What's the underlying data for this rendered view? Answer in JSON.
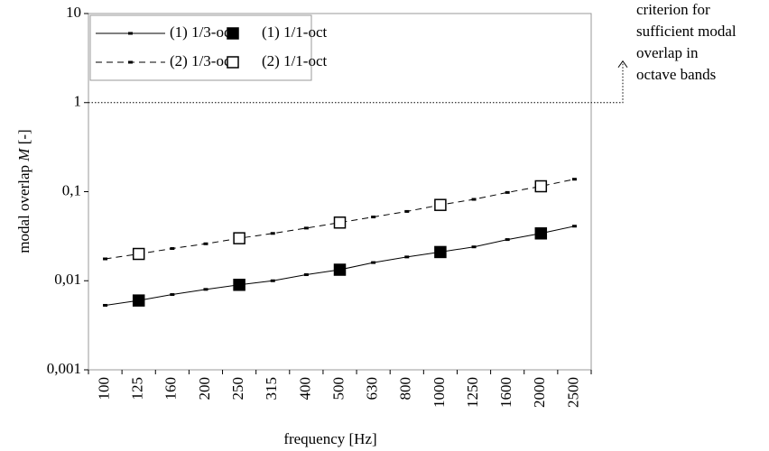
{
  "chart_data": {
    "type": "line",
    "xlabel": "frequency [Hz]",
    "ylabel_parts": [
      "modal overlap ",
      "M",
      " [-]"
    ],
    "annotation_lines": [
      "criterion for",
      "sufficient modal",
      "overlap in",
      "octave bands"
    ],
    "categories": [
      "100",
      "125",
      "160",
      "200",
      "250",
      "315",
      "400",
      "500",
      "630",
      "800",
      "1000",
      "1250",
      "1600",
      "2000",
      "2500"
    ],
    "log_y": true,
    "ylim": [
      0.001,
      10
    ],
    "yticks": [
      {
        "value": 0.001,
        "label": "0,001"
      },
      {
        "value": 0.01,
        "label": "0,01"
      },
      {
        "value": 0.1,
        "label": "0,1"
      },
      1,
      10
    ],
    "criterion_tick": 3,
    "series": [
      {
        "name": "(1) 1/3-oct",
        "color": "#000000",
        "linestyle": "solid",
        "marker": "dot",
        "marker_filled": true,
        "values": [
          0.0053,
          0.006,
          0.007,
          0.008,
          0.009,
          0.01,
          0.0117,
          0.0133,
          0.016,
          0.0185,
          0.021,
          0.024,
          0.029,
          0.034,
          0.041
        ]
      },
      {
        "name": "(1) 1/1-oct",
        "color": "#000000",
        "linestyle": "none",
        "marker": "square",
        "marker_filled": true,
        "values": [
          null,
          0.006,
          null,
          null,
          0.009,
          null,
          null,
          0.0133,
          null,
          null,
          0.021,
          null,
          null,
          0.034,
          null
        ]
      },
      {
        "name": "(2) 1/3-oct",
        "color": "#000000",
        "linestyle": "dashed",
        "marker": "dot",
        "marker_filled": true,
        "values": [
          0.0176,
          0.02,
          0.023,
          0.026,
          0.03,
          0.034,
          0.039,
          0.045,
          0.052,
          0.06,
          0.071,
          0.082,
          0.098,
          0.115,
          0.138
        ]
      },
      {
        "name": "(2) 1/1-oct",
        "color": "#000000",
        "linestyle": "none",
        "marker": "square",
        "marker_filled": false,
        "values": [
          null,
          0.02,
          null,
          null,
          0.03,
          null,
          null,
          0.045,
          null,
          null,
          0.071,
          null,
          null,
          0.115,
          null
        ]
      }
    ]
  }
}
